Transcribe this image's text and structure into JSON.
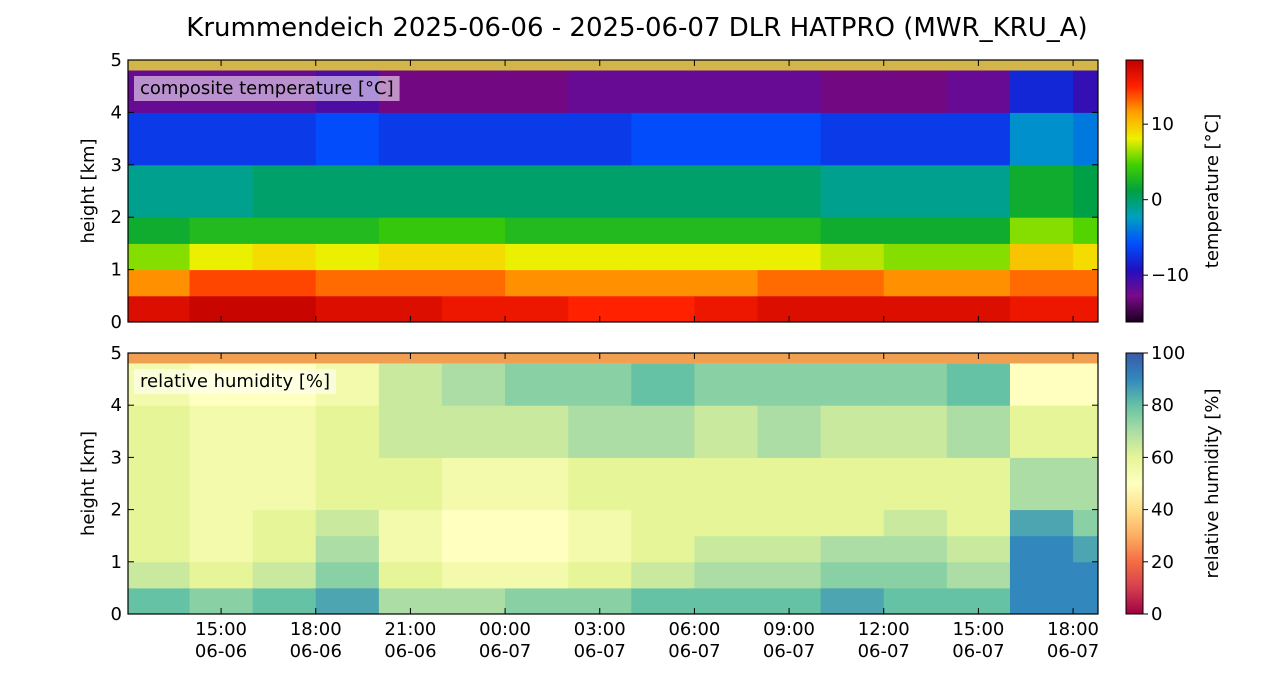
{
  "title": "Krummendeich  2025-06-06 - 2025-06-07  DLR HATPRO  (MWR_KRU_A)",
  "chart_data": [
    {
      "type": "heatmap",
      "label": "composite temperature [°C]",
      "y_label": "height [km]",
      "colorbar_label": "temperature [°C]",
      "xlim": [
        12.05,
        42.79
      ],
      "xticks": [
        15,
        18,
        21,
        24,
        27,
        30,
        33,
        36,
        39,
        42
      ],
      "ylim": [
        0,
        5
      ],
      "yticks": [
        0,
        1,
        2,
        3,
        4,
        5
      ],
      "zlim": [
        -16.2,
        18.5
      ],
      "zticks": [
        {
          "value": -10,
          "label": "−10"
        },
        0,
        10
      ],
      "colormap": [
        "#1a0020",
        "#7a0a8a",
        "#2010c0",
        "#0050ff",
        "#00a0c0",
        "#00a040",
        "#40d000",
        "#f0f000",
        "#ffa000",
        "#ff2000",
        "#c00000"
      ],
      "x_bins": [
        12.05,
        14,
        16,
        18,
        20,
        22,
        24,
        26,
        28,
        30,
        32,
        34,
        36,
        38,
        40,
        42,
        42.79
      ],
      "y_bins": [
        0,
        0.5,
        1,
        1.5,
        2,
        3,
        4,
        4.8
      ],
      "values": [
        [
          17,
          12,
          6,
          2,
          -1,
          -7,
          -12
        ],
        [
          18,
          14,
          8,
          3,
          -1,
          -7,
          -12
        ],
        [
          18,
          14,
          9,
          3,
          0,
          -7,
          -12
        ],
        [
          17,
          13,
          8,
          3,
          0,
          -6,
          -11
        ],
        [
          17,
          13,
          9,
          4,
          0,
          -7,
          -13
        ],
        [
          16,
          13,
          9,
          4,
          0,
          -7,
          -13
        ],
        [
          16,
          12,
          8,
          3,
          0,
          -7,
          -13
        ],
        [
          15,
          12,
          8,
          3,
          0,
          -7,
          -12
        ],
        [
          15,
          12,
          8,
          3,
          0,
          -6,
          -12
        ],
        [
          16,
          12,
          8,
          3,
          0,
          -6,
          -12
        ],
        [
          17,
          13,
          8,
          3,
          0,
          -6,
          -12
        ],
        [
          17,
          13,
          7,
          2,
          -1,
          -7,
          -13
        ],
        [
          17,
          12,
          6,
          2,
          -1,
          -7,
          -13
        ],
        [
          17,
          12,
          6,
          2,
          -1,
          -7,
          -12
        ],
        [
          16,
          13,
          10,
          6,
          2,
          -3,
          -8
        ],
        [
          16,
          13,
          9,
          5,
          1,
          -4,
          -10
        ]
      ]
    },
    {
      "type": "heatmap",
      "label": "relative humidity [%]",
      "y_label": "height [km]",
      "colorbar_label": "relative humidity [%]",
      "xlim": [
        12.05,
        42.79
      ],
      "xticks": [
        {
          "value": 15,
          "label": "15:00\n06-06"
        },
        {
          "value": 18,
          "label": "18:00\n06-06"
        },
        {
          "value": 21,
          "label": "21:00\n06-06"
        },
        {
          "value": 24,
          "label": "00:00\n06-07"
        },
        {
          "value": 27,
          "label": "03:00\n06-07"
        },
        {
          "value": 30,
          "label": "06:00\n06-07"
        },
        {
          "value": 33,
          "label": "09:00\n06-07"
        },
        {
          "value": 36,
          "label": "12:00\n06-07"
        },
        {
          "value": 39,
          "label": "15:00\n06-07"
        },
        {
          "value": 42,
          "label": "18:00\n06-07"
        }
      ],
      "ylim": [
        0,
        5
      ],
      "yticks": [
        0,
        1,
        2,
        3,
        4,
        5
      ],
      "zlim": [
        0,
        100
      ],
      "zticks": [
        0,
        20,
        40,
        60,
        80,
        100
      ],
      "colormap": [
        "#9e0142",
        "#d53e4f",
        "#f46d43",
        "#fdae61",
        "#fee08b",
        "#ffffbf",
        "#e6f598",
        "#abdda4",
        "#66c2a5",
        "#3288bd",
        "#3a5aa8"
      ],
      "x_bins": [
        12.05,
        14,
        16,
        18,
        20,
        22,
        24,
        26,
        28,
        30,
        32,
        34,
        36,
        38,
        40,
        42,
        42.79
      ],
      "y_bins": [
        0,
        0.5,
        1,
        1.5,
        2,
        3,
        4,
        4.8
      ],
      "values": [
        [
          80,
          65,
          60,
          60,
          60,
          60,
          55
        ],
        [
          75,
          60,
          55,
          55,
          55,
          55,
          50
        ],
        [
          80,
          65,
          60,
          60,
          55,
          55,
          50
        ],
        [
          85,
          75,
          70,
          65,
          60,
          60,
          55
        ],
        [
          70,
          60,
          55,
          55,
          60,
          65,
          65
        ],
        [
          70,
          55,
          50,
          50,
          55,
          65,
          70
        ],
        [
          75,
          55,
          50,
          50,
          55,
          65,
          75
        ],
        [
          75,
          60,
          55,
          55,
          60,
          70,
          75
        ],
        [
          80,
          65,
          60,
          60,
          60,
          70,
          80
        ],
        [
          80,
          70,
          65,
          60,
          60,
          65,
          75
        ],
        [
          80,
          70,
          65,
          60,
          60,
          70,
          75
        ],
        [
          85,
          75,
          70,
          60,
          60,
          65,
          75
        ],
        [
          80,
          75,
          70,
          65,
          60,
          65,
          75
        ],
        [
          80,
          70,
          65,
          60,
          60,
          70,
          80
        ],
        [
          90,
          90,
          90,
          85,
          70,
          60,
          50
        ],
        [
          90,
          90,
          85,
          75,
          70,
          60,
          50
        ]
      ]
    }
  ]
}
